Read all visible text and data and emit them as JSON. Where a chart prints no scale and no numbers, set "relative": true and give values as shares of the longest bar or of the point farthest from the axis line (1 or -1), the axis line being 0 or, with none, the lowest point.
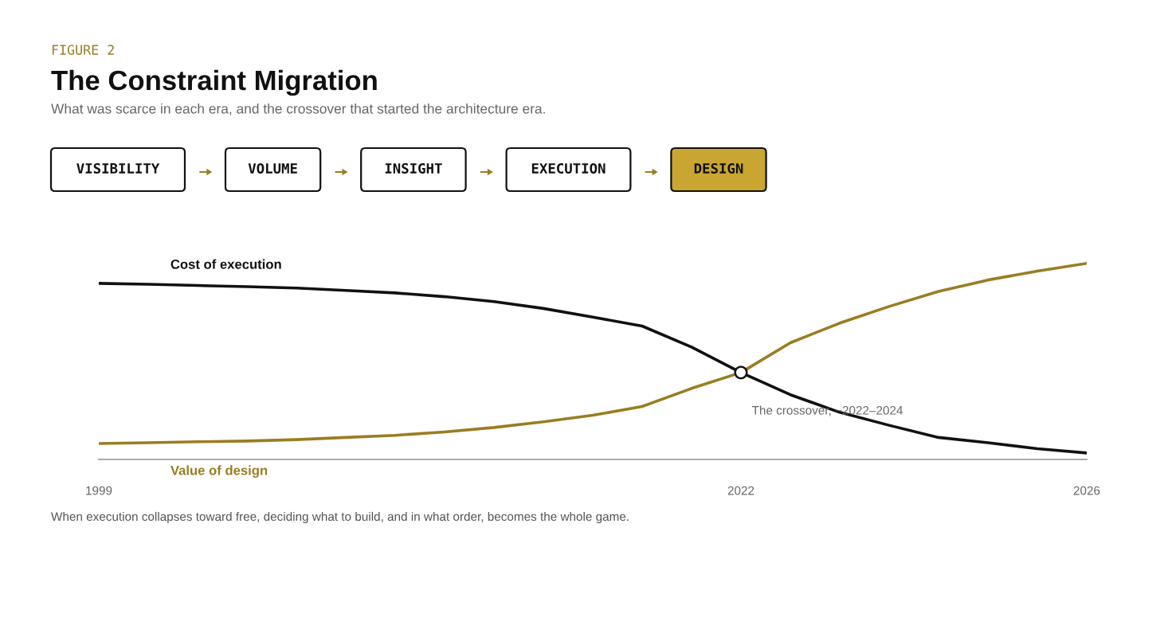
{
  "chart_data": [
    {
      "type": "other",
      "annotations": [
        "FIGURE 2"
      ],
      "title": "The Constraint Migration",
      "subtitle": "What was scarce in each era, and the crossover that started the architecture era.",
      "categories": [
        "VISIBILITY",
        "VOLUME",
        "INSIGHT",
        "EXECUTION",
        "DESIGN"
      ],
      "colors": [
        "#ffffff",
        "#ffffff",
        "#ffffff",
        "#ffffff",
        "#c9a632"
      ]
    },
    {
      "type": "line",
      "relative": true,
      "categories": [
        "1999",
        null,
        null,
        null,
        null,
        null,
        null,
        null,
        null,
        null,
        null,
        null,
        null,
        "2022",
        null,
        null,
        null,
        null,
        null,
        null,
        "2026"
      ],
      "series": [
        {
          "name": "Cost of execution",
          "color": "#111111",
          "values": [
            0.898,
            0.893,
            0.887,
            0.881,
            0.874,
            0.862,
            0.849,
            0.83,
            0.805,
            0.77,
            0.726,
            0.68,
            0.573,
            0.443,
            0.33,
            0.24,
            0.174,
            0.112,
            0.085,
            0.055,
            0.033
          ]
        },
        {
          "name": "Value of design",
          "color": "#9a7d22",
          "values": [
            0.081,
            0.085,
            0.09,
            0.094,
            0.101,
            0.112,
            0.123,
            0.14,
            0.163,
            0.192,
            0.225,
            0.27,
            0.362,
            0.443,
            0.595,
            0.695,
            0.78,
            0.857,
            0.915,
            0.96,
            1.0
          ]
        },
        {
          "type": "scatter",
          "color": "#ffffff",
          "values": [
            null,
            null,
            null,
            null,
            null,
            null,
            null,
            null,
            null,
            null,
            null,
            null,
            null,
            0.443,
            null,
            null,
            null,
            null,
            null,
            null,
            null
          ]
        }
      ],
      "annotations": [
        "The crossover, ~2022–2024",
        "When execution collapses toward free, deciding what to build, and in what order, becomes the whole game."
      ]
    }
  ]
}
